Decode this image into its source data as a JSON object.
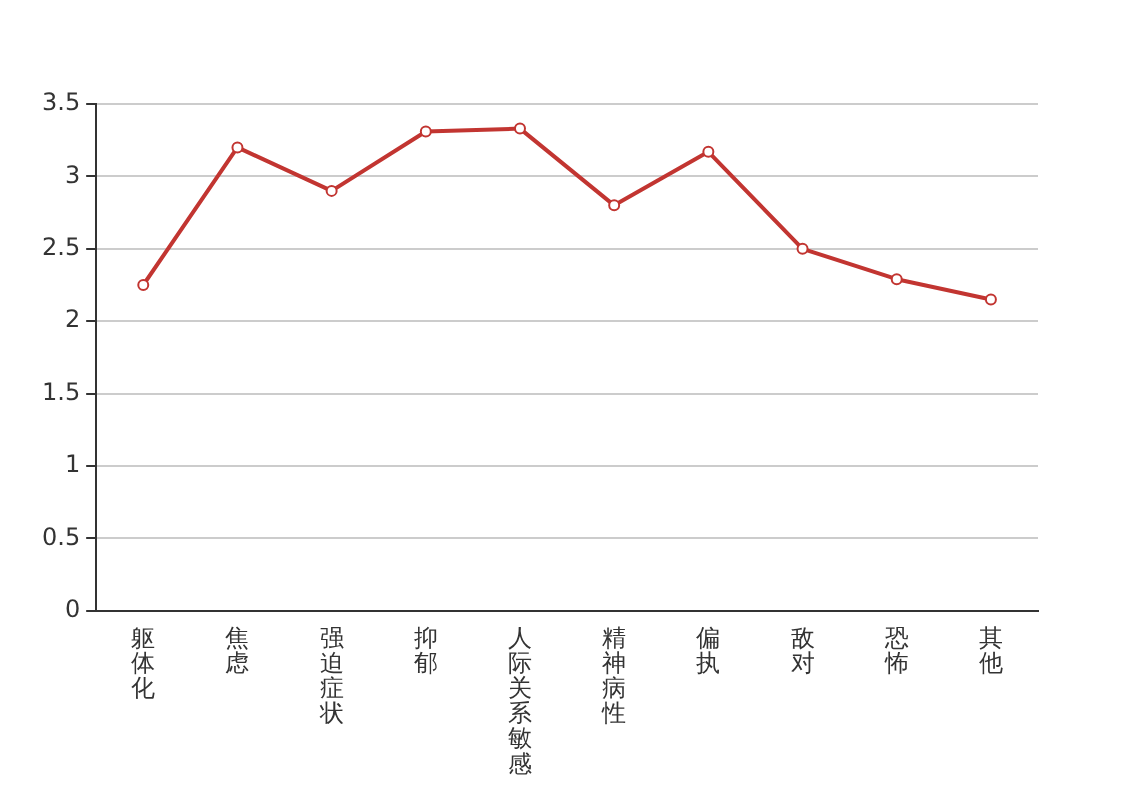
{
  "chart_data": {
    "type": "line",
    "categories": [
      "躯体化",
      "焦虑",
      "强迫症状",
      "抑郁",
      "人际关系敏感",
      "精神病性",
      "偏执",
      "敌对",
      "恐怖",
      "其他"
    ],
    "series": [
      {
        "color": "#c23531",
        "values": [
          2.25,
          3.2,
          2.9,
          3.31,
          3.33,
          2.8,
          3.17,
          2.5,
          2.29,
          2.15
        ]
      }
    ],
    "ylim": [
      0,
      3.5
    ],
    "yticks": [
      0,
      0.5,
      1,
      1.5,
      2,
      2.5,
      3,
      3.5
    ],
    "grid": "y",
    "legend": false,
    "marker": "circle",
    "line_style": "solid"
  }
}
